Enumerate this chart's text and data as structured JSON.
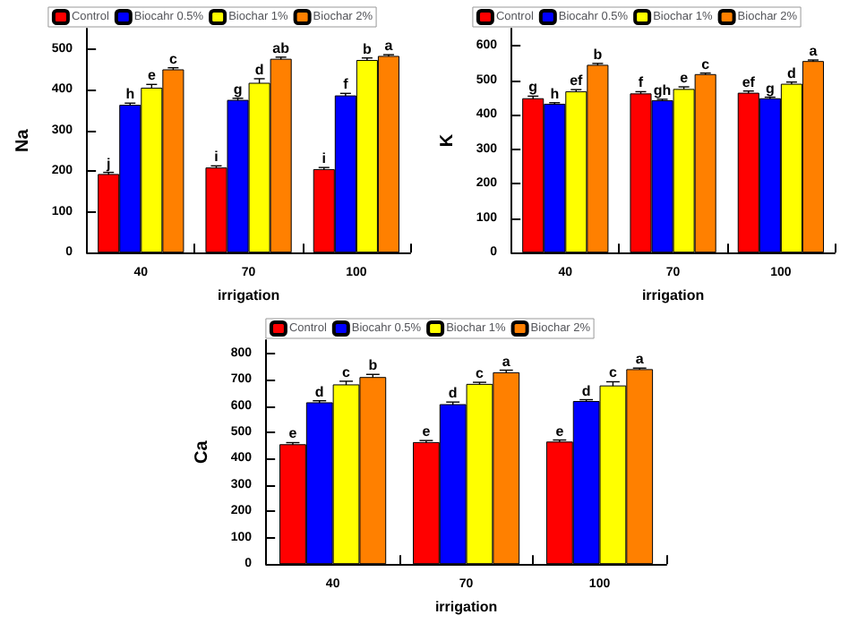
{
  "chart_data": [
    {
      "type": "bar",
      "xlabel": "irrigation",
      "ylabel": "Na",
      "categories": [
        "40",
        "70",
        "100"
      ],
      "ylim": [
        0,
        550
      ],
      "yticks": [
        0,
        100,
        200,
        300,
        400,
        500
      ],
      "grid": false,
      "legend": "top",
      "series": [
        {
          "name": "Control",
          "color": "#ff0000",
          "values": [
            193,
            209,
            205
          ],
          "errors": [
            4,
            4,
            4
          ],
          "value_labels": [
            "j",
            "i",
            "i"
          ]
        },
        {
          "name": "Biocahr 0.5%",
          "color": "#0000ff",
          "values": [
            363,
            375,
            386
          ],
          "errors": [
            4,
            4,
            5
          ],
          "value_labels": [
            "h",
            "g",
            "f"
          ]
        },
        {
          "name": "Biochar 1%",
          "color": "#ffff00",
          "values": [
            405,
            417,
            473
          ],
          "errors": [
            8,
            10,
            5
          ],
          "value_labels": [
            "e",
            "d",
            "b"
          ]
        },
        {
          "name": "Biochar 2%",
          "color": "#ff8000",
          "values": [
            450,
            476,
            483
          ],
          "errors": [
            4,
            4,
            3
          ],
          "value_labels": [
            "c",
            "ab",
            "a"
          ]
        }
      ]
    },
    {
      "type": "bar",
      "xlabel": "irrigation",
      "ylabel": "K",
      "categories": [
        "40",
        "70",
        "100"
      ],
      "ylim": [
        0,
        650
      ],
      "yticks": [
        0,
        100,
        200,
        300,
        400,
        500,
        600
      ],
      "grid": false,
      "legend": "top",
      "series": [
        {
          "name": "Control",
          "color": "#ff0000",
          "values": [
            448,
            462,
            464
          ],
          "errors": [
            6,
            5,
            5
          ],
          "value_labels": [
            "g",
            "f",
            "ef"
          ]
        },
        {
          "name": "Biocahr 0.5%",
          "color": "#0000ff",
          "values": [
            432,
            442,
            448
          ],
          "errors": [
            3,
            3,
            3
          ],
          "value_labels": [
            "h",
            "gh",
            "g"
          ]
        },
        {
          "name": "Biochar 1%",
          "color": "#ffff00",
          "values": [
            468,
            475,
            490
          ],
          "errors": [
            5,
            6,
            5
          ],
          "value_labels": [
            "ef",
            "e",
            "d"
          ]
        },
        {
          "name": "Biochar 2%",
          "color": "#ff8000",
          "values": [
            545,
            518,
            556
          ],
          "errors": [
            4,
            3,
            3
          ],
          "value_labels": [
            "b",
            "c",
            "a"
          ]
        }
      ]
    },
    {
      "type": "bar",
      "xlabel": "irrigation",
      "ylabel": "Ca",
      "categories": [
        "40",
        "70",
        "100"
      ],
      "ylim": [
        0,
        850
      ],
      "yticks": [
        0,
        100,
        200,
        300,
        400,
        500,
        600,
        700,
        800
      ],
      "grid": false,
      "legend": "top",
      "series": [
        {
          "name": "Control",
          "color": "#ff0000",
          "values": [
            455,
            463,
            465
          ],
          "errors": [
            6,
            6,
            6
          ],
          "value_labels": [
            "e",
            "e",
            "e"
          ]
        },
        {
          "name": "Biocahr 0.5%",
          "color": "#0000ff",
          "values": [
            614,
            607,
            619
          ],
          "errors": [
            6,
            8,
            5
          ],
          "value_labels": [
            "d",
            "d",
            "d"
          ]
        },
        {
          "name": "Biochar 1%",
          "color": "#ffff00",
          "values": [
            682,
            684,
            678
          ],
          "errors": [
            12,
            6,
            14
          ],
          "value_labels": [
            "c",
            "c",
            "c"
          ]
        },
        {
          "name": "Biochar 2%",
          "color": "#ff8000",
          "values": [
            710,
            728,
            740
          ],
          "errors": [
            10,
            8,
            4
          ],
          "value_labels": [
            "b",
            "a",
            "a"
          ]
        }
      ]
    }
  ]
}
